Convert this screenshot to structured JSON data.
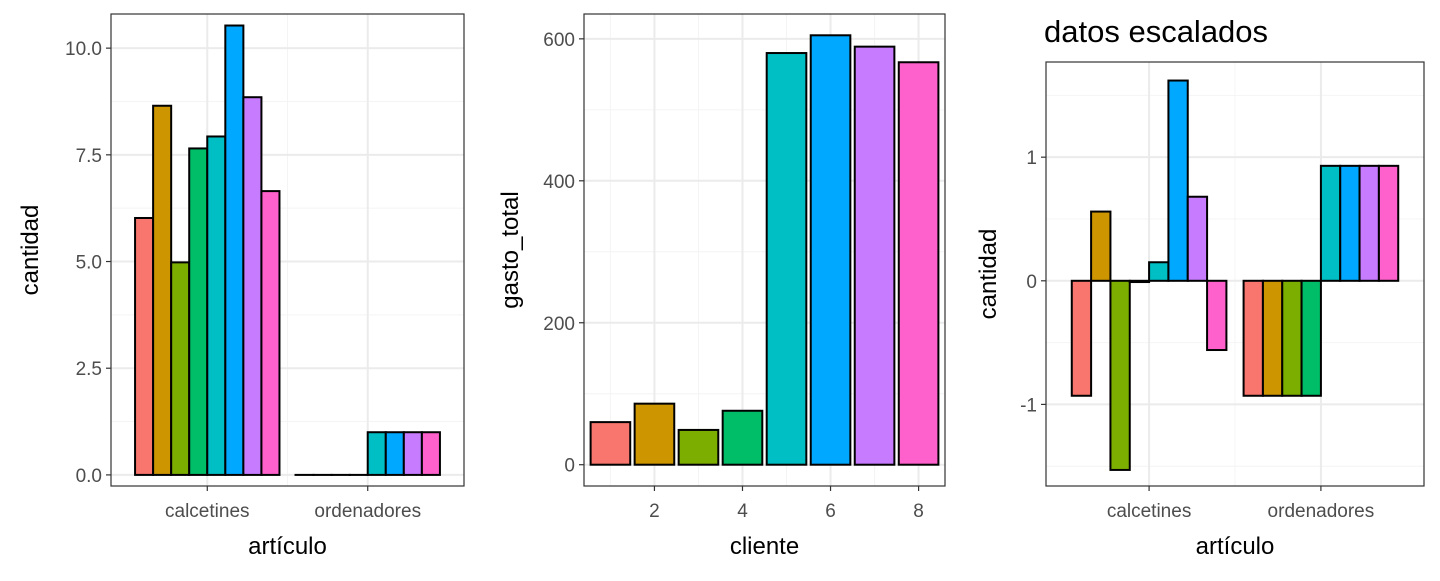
{
  "chart_data": [
    {
      "type": "bar",
      "title": "",
      "xlabel": "artículo",
      "ylabel": "cantidad",
      "categories": [
        "calcetines",
        "ordenadores"
      ],
      "ylim": [
        -0.26,
        10.8
      ],
      "yticks": [
        0.0,
        2.5,
        5.0,
        7.5,
        10.0
      ],
      "ytick_labels": [
        "0.0",
        "2.5",
        "5.0",
        "7.5",
        "10.0"
      ],
      "grid": true,
      "legend": "none",
      "series": [
        {
          "values": [
            6.02,
            0
          ]
        },
        {
          "values": [
            8.65,
            0
          ]
        },
        {
          "values": [
            4.98,
            0
          ]
        },
        {
          "values": [
            7.65,
            0
          ]
        },
        {
          "values": [
            7.93,
            1
          ]
        },
        {
          "values": [
            10.53,
            1
          ]
        },
        {
          "values": [
            8.85,
            1
          ]
        },
        {
          "values": [
            6.65,
            1
          ]
        }
      ]
    },
    {
      "type": "bar",
      "title": "",
      "xlabel": "cliente",
      "ylabel": "gasto_total",
      "x": [
        1,
        2,
        3,
        4,
        5,
        6,
        7,
        8
      ],
      "values": [
        60,
        86,
        49,
        76,
        580,
        605,
        589,
        567
      ],
      "xlim": [
        0.4,
        8.6
      ],
      "ylim": [
        -30,
        635
      ],
      "xticks": [
        2,
        4,
        6,
        8
      ],
      "yticks": [
        0,
        200,
        400,
        600
      ],
      "grid": true,
      "legend": "none"
    },
    {
      "type": "bar",
      "title": "datos escalados",
      "xlabel": "artículo",
      "ylabel": "cantidad",
      "categories": [
        "calcetines",
        "ordenadores"
      ],
      "ylim": [
        -1.66,
        1.77
      ],
      "yticks": [
        -1,
        0,
        1
      ],
      "ytick_labels": [
        "-1",
        "0",
        "1"
      ],
      "grid": true,
      "legend": "none",
      "series": [
        {
          "values": [
            -0.93,
            -0.93
          ]
        },
        {
          "values": [
            0.56,
            -0.93
          ]
        },
        {
          "values": [
            -1.53,
            -0.93
          ]
        },
        {
          "values": [
            -0.01,
            -0.93
          ]
        },
        {
          "values": [
            0.15,
            0.93
          ]
        },
        {
          "values": [
            1.62,
            0.93
          ]
        },
        {
          "values": [
            0.68,
            0.93
          ]
        },
        {
          "values": [
            -0.56,
            0.93
          ]
        }
      ]
    }
  ],
  "colors": [
    "#F8766D",
    "#CD9600",
    "#7CAE00",
    "#00BE67",
    "#00BFC4",
    "#00A9FF",
    "#C77CFF",
    "#FF61CC"
  ],
  "style": {
    "grid_major": "#ebebeb",
    "grid_minor": "#f4f4f4",
    "panel_border": "#333333",
    "bar_outline": "#000000",
    "axis_text": "#4d4d4d",
    "axis_title": "#000000"
  }
}
